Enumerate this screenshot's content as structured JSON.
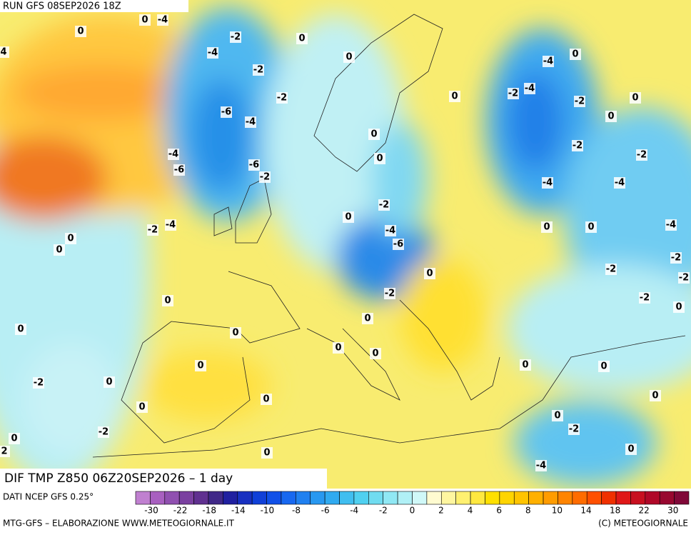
{
  "header": {
    "run": "RUN GFS 08SEP2026 18Z"
  },
  "title": "DIF TMP Z850 06Z20SEP2026 – 1 day",
  "source": "DATI NCEP GFS 0.25°",
  "footer_left": "MTG-GFS – ELABORAZIONE WWW.METEOGIORNALE.IT",
  "footer_right": "(C) METEOGIORNALE",
  "colorbar": {
    "ticks": [
      -30,
      -22,
      -18,
      -14,
      -10,
      -8,
      -6,
      -4,
      -2,
      0,
      2,
      4,
      6,
      8,
      10,
      14,
      18,
      22,
      30
    ],
    "colors": [
      "#c080d0",
      "#a860c0",
      "#9050b0",
      "#7a40a0",
      "#603090",
      "#402888",
      "#2020a0",
      "#1830c0",
      "#1040d8",
      "#1050e8",
      "#1868f0",
      "#2080f0",
      "#2898f0",
      "#30aaf0",
      "#40bef0",
      "#50d0f0",
      "#70dcf0",
      "#90e8f4",
      "#b0f0f6",
      "#d0f8f8",
      "#fffbd0",
      "#fff6a0",
      "#fff070",
      "#ffe840",
      "#ffe000",
      "#ffd400",
      "#ffc400",
      "#ffb000",
      "#ff9c00",
      "#ff8400",
      "#ff6c00",
      "#ff5000",
      "#f03000",
      "#e01818",
      "#c81020",
      "#b00828",
      "#980830",
      "#800838"
    ]
  },
  "contour_labels": [
    0,
    0,
    -4,
    -2,
    0,
    -4,
    -2,
    0,
    -2,
    -6,
    -4,
    -4,
    -6,
    -6,
    -2,
    0,
    0,
    0,
    -2,
    -4,
    -6,
    -2,
    -4,
    0,
    0,
    0,
    -2,
    0,
    0,
    0,
    0,
    0,
    0,
    0,
    0,
    -2,
    0,
    0,
    -2,
    0,
    2,
    0,
    0,
    -4,
    0,
    -2,
    -4,
    -2,
    0,
    0,
    -2,
    -2,
    -4,
    -4,
    0,
    0,
    -4,
    -2,
    -2,
    -2,
    -2,
    0,
    0,
    0,
    0,
    0,
    -2,
    0,
    -4,
    4
  ]
}
